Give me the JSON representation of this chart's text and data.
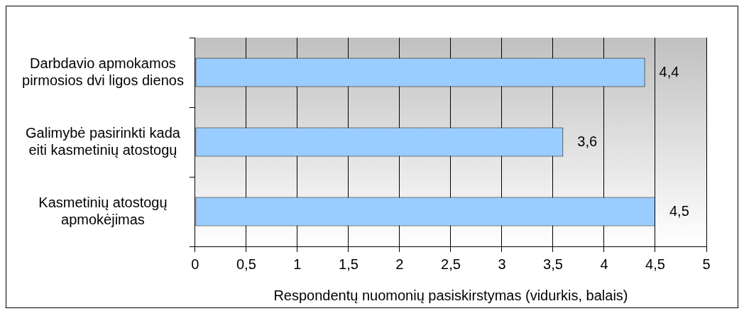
{
  "chart_data": {
    "type": "bar",
    "orientation": "horizontal",
    "categories": [
      "Darbdavio apmokamos pirmosios dvi ligos dienos",
      "Galimybė pasirinkti kada eiti kasmetinių atostogų",
      "Kasmetinių atostogų apmokėjimas"
    ],
    "values": [
      4.4,
      3.6,
      4.5
    ],
    "color": "#99ccff",
    "value_labels": [
      "4,4",
      "3,6",
      "4,5"
    ],
    "xlabel": "Respondentų nuomonių pasiskirstymas (vidurkis, balais)",
    "xlim": [
      0,
      5
    ],
    "xticks": [
      0,
      {
        "value": 0.5,
        "label": "0,5"
      },
      1,
      {
        "value": 1.5,
        "label": "1,5"
      },
      2,
      {
        "value": 2.5,
        "label": "2,5"
      },
      3,
      {
        "value": 3.5,
        "label": "3,5"
      },
      4,
      {
        "value": 4.5,
        "label": "4,5"
      },
      5
    ],
    "grid": "x",
    "legend": false
  }
}
